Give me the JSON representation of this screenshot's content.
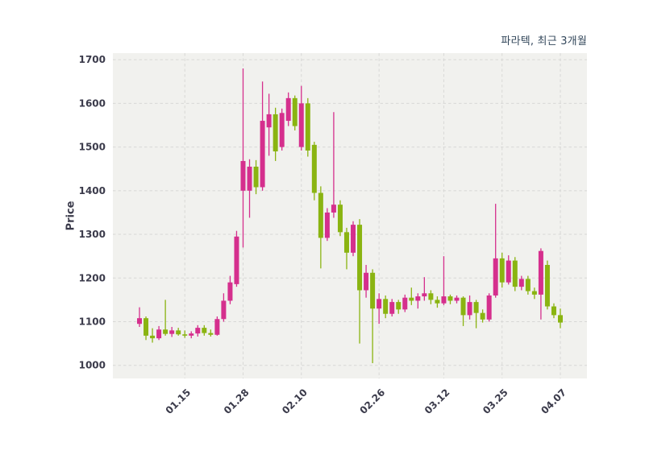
{
  "chart_data": {
    "type": "candlestick",
    "title": "파라텍, 최근 3개월",
    "ylabel": "Price",
    "ylim": [
      970,
      1715
    ],
    "yticks": [
      1000,
      1100,
      1200,
      1300,
      1400,
      1500,
      1600,
      1700
    ],
    "xticks": [
      {
        "i": 7,
        "label": "01.15"
      },
      {
        "i": 16,
        "label": "01.28"
      },
      {
        "i": 25,
        "label": "02.10"
      },
      {
        "i": 37,
        "label": "02.26"
      },
      {
        "i": 47,
        "label": "03.12"
      },
      {
        "i": 56,
        "label": "03.25"
      },
      {
        "i": 65,
        "label": "04.07"
      }
    ],
    "columns": [
      "date",
      "open",
      "high",
      "low",
      "close"
    ],
    "candles": [
      [
        "01.06",
        1095,
        1133,
        1088,
        1108
      ],
      [
        "01.07",
        1108,
        1112,
        1058,
        1068
      ],
      [
        "01.08",
        1068,
        1085,
        1052,
        1062
      ],
      [
        "01.09",
        1062,
        1090,
        1058,
        1082
      ],
      [
        "01.10",
        1082,
        1150,
        1068,
        1072
      ],
      [
        "01.13",
        1072,
        1088,
        1065,
        1080
      ],
      [
        "01.14",
        1080,
        1086,
        1068,
        1071
      ],
      [
        "01.15",
        1071,
        1080,
        1063,
        1068
      ],
      [
        "01.16",
        1068,
        1078,
        1062,
        1073
      ],
      [
        "01.17",
        1073,
        1092,
        1066,
        1086
      ],
      [
        "01.20",
        1086,
        1092,
        1068,
        1074
      ],
      [
        "01.21",
        1074,
        1082,
        1066,
        1070
      ],
      [
        "01.22",
        1070,
        1112,
        1068,
        1106
      ],
      [
        "01.23",
        1106,
        1165,
        1100,
        1148
      ],
      [
        "01.24",
        1148,
        1205,
        1140,
        1190
      ],
      [
        "01.27",
        1186,
        1308,
        1180,
        1295
      ],
      [
        "01.28",
        1400,
        1680,
        1270,
        1468
      ],
      [
        "01.29",
        1400,
        1472,
        1338,
        1455
      ],
      [
        "01.30",
        1455,
        1470,
        1392,
        1408
      ],
      [
        "01.31",
        1408,
        1650,
        1400,
        1560
      ],
      [
        "02.03",
        1545,
        1622,
        1480,
        1575
      ],
      [
        "02.04",
        1575,
        1590,
        1468,
        1490
      ],
      [
        "02.05",
        1500,
        1588,
        1492,
        1578
      ],
      [
        "02.06",
        1560,
        1625,
        1548,
        1612
      ],
      [
        "02.07",
        1612,
        1618,
        1538,
        1548
      ],
      [
        "02.10",
        1500,
        1640,
        1492,
        1600
      ],
      [
        "02.11",
        1600,
        1612,
        1478,
        1492
      ],
      [
        "02.12",
        1505,
        1512,
        1378,
        1395
      ],
      [
        "02.13",
        1395,
        1410,
        1222,
        1292
      ],
      [
        "02.14",
        1292,
        1360,
        1285,
        1350
      ],
      [
        "02.17",
        1350,
        1580,
        1338,
        1368
      ],
      [
        "02.18",
        1368,
        1378,
        1296,
        1305
      ],
      [
        "02.19",
        1305,
        1315,
        1220,
        1258
      ],
      [
        "02.20",
        1258,
        1330,
        1250,
        1322
      ],
      [
        "02.21",
        1322,
        1335,
        1050,
        1172
      ],
      [
        "02.24",
        1172,
        1230,
        1155,
        1212
      ],
      [
        "02.25",
        1212,
        1220,
        1005,
        1130
      ],
      [
        "02.26",
        1130,
        1165,
        1095,
        1152
      ],
      [
        "02.27",
        1152,
        1160,
        1108,
        1118
      ],
      [
        "02.28",
        1118,
        1152,
        1112,
        1145
      ],
      [
        "03.03",
        1145,
        1150,
        1118,
        1128
      ],
      [
        "03.04",
        1128,
        1162,
        1122,
        1155
      ],
      [
        "03.05",
        1155,
        1178,
        1138,
        1148
      ],
      [
        "03.06",
        1148,
        1165,
        1130,
        1158
      ],
      [
        "03.07",
        1158,
        1202,
        1148,
        1165
      ],
      [
        "03.10",
        1165,
        1172,
        1140,
        1150
      ],
      [
        "03.11",
        1150,
        1158,
        1132,
        1142
      ],
      [
        "03.12",
        1142,
        1250,
        1138,
        1158
      ],
      [
        "03.13",
        1158,
        1162,
        1140,
        1148
      ],
      [
        "03.14",
        1148,
        1160,
        1142,
        1155
      ],
      [
        "03.17",
        1155,
        1158,
        1090,
        1115
      ],
      [
        "03.18",
        1115,
        1160,
        1105,
        1145
      ],
      [
        "03.19",
        1145,
        1150,
        1085,
        1120
      ],
      [
        "03.20",
        1120,
        1128,
        1098,
        1105
      ],
      [
        "03.21",
        1105,
        1165,
        1100,
        1160
      ],
      [
        "03.24",
        1160,
        1370,
        1155,
        1245
      ],
      [
        "03.25",
        1245,
        1258,
        1178,
        1190
      ],
      [
        "03.26",
        1190,
        1252,
        1185,
        1240
      ],
      [
        "03.27",
        1240,
        1248,
        1170,
        1180
      ],
      [
        "03.28",
        1180,
        1205,
        1172,
        1198
      ],
      [
        "03.31",
        1198,
        1205,
        1162,
        1170
      ],
      [
        "04.01",
        1170,
        1178,
        1152,
        1162
      ],
      [
        "04.02",
        1162,
        1268,
        1105,
        1262
      ],
      [
        "04.03",
        1230,
        1240,
        1128,
        1135
      ],
      [
        "04.04",
        1135,
        1142,
        1108,
        1115
      ],
      [
        "04.07",
        1115,
        1130,
        1085,
        1098
      ]
    ],
    "grid": "dashed",
    "legend": "none",
    "colors": {
      "up": "#d52f8d",
      "down": "#8ab411",
      "plot_bg": "#f1f1ee",
      "grid": "#d8d8d6",
      "tick_text": "#3b3b4b",
      "title_text": "#33475b"
    }
  }
}
